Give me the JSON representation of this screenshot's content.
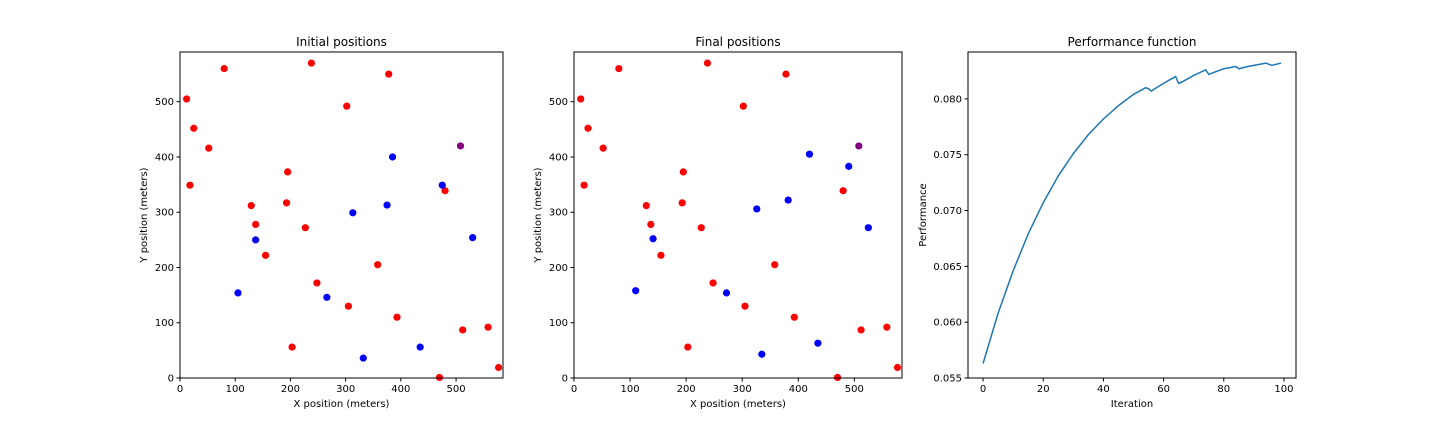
{
  "colors": {
    "red": "#ff0000",
    "blue": "#0000ff",
    "purple": "#800080",
    "line": "#1f77b4",
    "axes": "#000000"
  },
  "chart_data": [
    {
      "type": "scatter",
      "title": "Initial positions",
      "xlabel": "X position (meters)",
      "ylabel": "Y position (meters)",
      "xlim": [
        0,
        585
      ],
      "ylim": [
        0,
        590
      ],
      "xticks": [
        0,
        100,
        200,
        300,
        400,
        500
      ],
      "yticks": [
        0,
        100,
        200,
        300,
        400,
        500
      ],
      "series": [
        {
          "color": "red",
          "points": [
            [
              12,
              505
            ],
            [
              25,
              452
            ],
            [
              52,
              416
            ],
            [
              18,
              349
            ],
            [
              80,
              560
            ],
            [
              238,
              570
            ],
            [
              302,
              492
            ],
            [
              378,
              550
            ],
            [
              195,
              373
            ],
            [
              193,
              317
            ],
            [
              129,
              312
            ],
            [
              137,
              278
            ],
            [
              227,
              272
            ],
            [
              155,
              222
            ],
            [
              248,
              172
            ],
            [
              358,
              205
            ],
            [
              305,
              130
            ],
            [
              393,
              110
            ],
            [
              203,
              56
            ],
            [
              480,
              339
            ],
            [
              512,
              87
            ],
            [
              558,
              92
            ],
            [
              470,
              1
            ],
            [
              577,
              19
            ]
          ]
        },
        {
          "color": "blue",
          "points": [
            [
              385,
              400
            ],
            [
              475,
              349
            ],
            [
              313,
              299
            ],
            [
              375,
              313
            ],
            [
              137,
              250
            ],
            [
              530,
              254
            ],
            [
              105,
              154
            ],
            [
              266,
              146
            ],
            [
              435,
              56
            ],
            [
              332,
              36
            ]
          ]
        },
        {
          "color": "purple",
          "points": [
            [
              508,
              420
            ]
          ]
        }
      ]
    },
    {
      "type": "scatter",
      "title": "Final positions",
      "xlabel": "X position (meters)",
      "ylabel": "Y position (meters)",
      "xlim": [
        0,
        585
      ],
      "ylim": [
        0,
        590
      ],
      "xticks": [
        0,
        100,
        200,
        300,
        400,
        500
      ],
      "yticks": [
        0,
        100,
        200,
        300,
        400,
        500
      ],
      "series": [
        {
          "color": "red",
          "points": [
            [
              12,
              505
            ],
            [
              25,
              452
            ],
            [
              52,
              416
            ],
            [
              18,
              349
            ],
            [
              80,
              560
            ],
            [
              238,
              570
            ],
            [
              302,
              492
            ],
            [
              378,
              550
            ],
            [
              195,
              373
            ],
            [
              193,
              317
            ],
            [
              129,
              312
            ],
            [
              137,
              278
            ],
            [
              227,
              272
            ],
            [
              155,
              222
            ],
            [
              248,
              172
            ],
            [
              358,
              205
            ],
            [
              305,
              130
            ],
            [
              393,
              110
            ],
            [
              203,
              56
            ],
            [
              480,
              339
            ],
            [
              512,
              87
            ],
            [
              558,
              92
            ],
            [
              470,
              1
            ],
            [
              577,
              19
            ]
          ]
        },
        {
          "color": "blue",
          "points": [
            [
              420,
              405
            ],
            [
              490,
              383
            ],
            [
              326,
              306
            ],
            [
              382,
              322
            ],
            [
              141,
              252
            ],
            [
              525,
              272
            ],
            [
              110,
              158
            ],
            [
              272,
              154
            ],
            [
              435,
              63
            ],
            [
              335,
              43
            ]
          ]
        },
        {
          "color": "purple",
          "points": [
            [
              508,
              420
            ]
          ]
        }
      ]
    },
    {
      "type": "line",
      "title": "Performance function",
      "xlabel": "Iteration",
      "ylabel": "Performance",
      "xlim": [
        -5,
        104
      ],
      "ylim": [
        0.055,
        0.0842
      ],
      "xticks": [
        0,
        20,
        40,
        60,
        80,
        100
      ],
      "yticks": [
        "0.055",
        "0.060",
        "0.065",
        "0.070",
        "0.075",
        "0.080"
      ],
      "series": [
        {
          "color": "line",
          "points": [
            [
              0,
              0.0563
            ],
            [
              5,
              0.0608
            ],
            [
              10,
              0.0646
            ],
            [
              15,
              0.0679
            ],
            [
              20,
              0.0707
            ],
            [
              25,
              0.0731
            ],
            [
              30,
              0.0751
            ],
            [
              35,
              0.0768
            ],
            [
              40,
              0.0782
            ],
            [
              45,
              0.0794
            ],
            [
              50,
              0.0804
            ],
            [
              54,
              0.081
            ],
            [
              55,
              0.0809
            ],
            [
              56,
              0.0807
            ],
            [
              57,
              0.0809
            ],
            [
              60,
              0.0814
            ],
            [
              64,
              0.082
            ],
            [
              65,
              0.0814
            ],
            [
              66,
              0.0815
            ],
            [
              70,
              0.0821
            ],
            [
              74,
              0.0826
            ],
            [
              75,
              0.0822
            ],
            [
              76,
              0.0823
            ],
            [
              80,
              0.0827
            ],
            [
              84,
              0.0829
            ],
            [
              85,
              0.0827
            ],
            [
              88,
              0.0829
            ],
            [
              92,
              0.0831
            ],
            [
              94,
              0.0832
            ],
            [
              96,
              0.083
            ],
            [
              99,
              0.0832
            ]
          ]
        }
      ]
    }
  ]
}
